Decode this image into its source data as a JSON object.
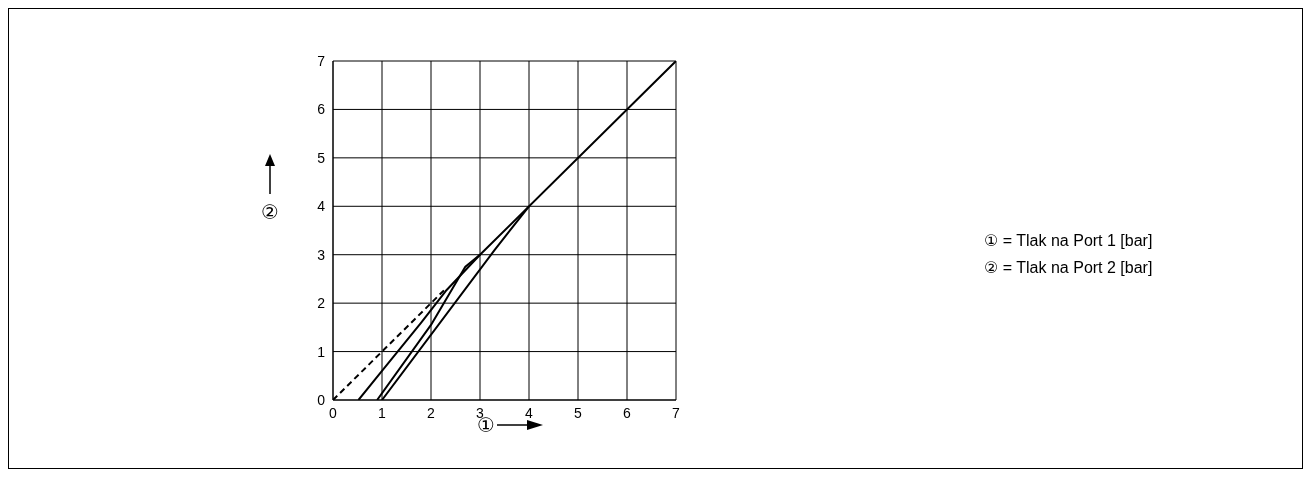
{
  "chart_data": {
    "type": "line",
    "xlabel": "①",
    "ylabel": "②",
    "series": [
      {
        "color": "#000000",
        "line_style": "dashed",
        "x": [
          0,
          2.3
        ],
        "values": [
          0,
          2.3
        ]
      },
      {
        "color": "#000000",
        "x": [
          0.52,
          1,
          1.8,
          2.3,
          3,
          7
        ],
        "values": [
          0,
          0.6,
          1.6,
          2.25,
          3,
          7
        ]
      },
      {
        "color": "#000000",
        "x": [
          0.9,
          2,
          2.7,
          3
        ],
        "values": [
          0,
          1.55,
          2.75,
          3
        ]
      },
      {
        "color": "#000000",
        "x": [
          1,
          3.3,
          4
        ],
        "values": [
          0,
          3.1,
          4
        ]
      }
    ],
    "xlim": [
      0,
      7
    ],
    "ylim": [
      0,
      7
    ],
    "xticks": [
      0,
      1,
      2,
      3,
      4,
      5,
      6,
      7
    ],
    "yticks": [
      0,
      1,
      2,
      3,
      4,
      5,
      6,
      7
    ],
    "grid": true,
    "marker": "none",
    "line_style": "solid",
    "annotations": [
      "① = Tlak na Port 1 [bar]",
      "② = Tlak na Port 2 [bar]"
    ]
  }
}
